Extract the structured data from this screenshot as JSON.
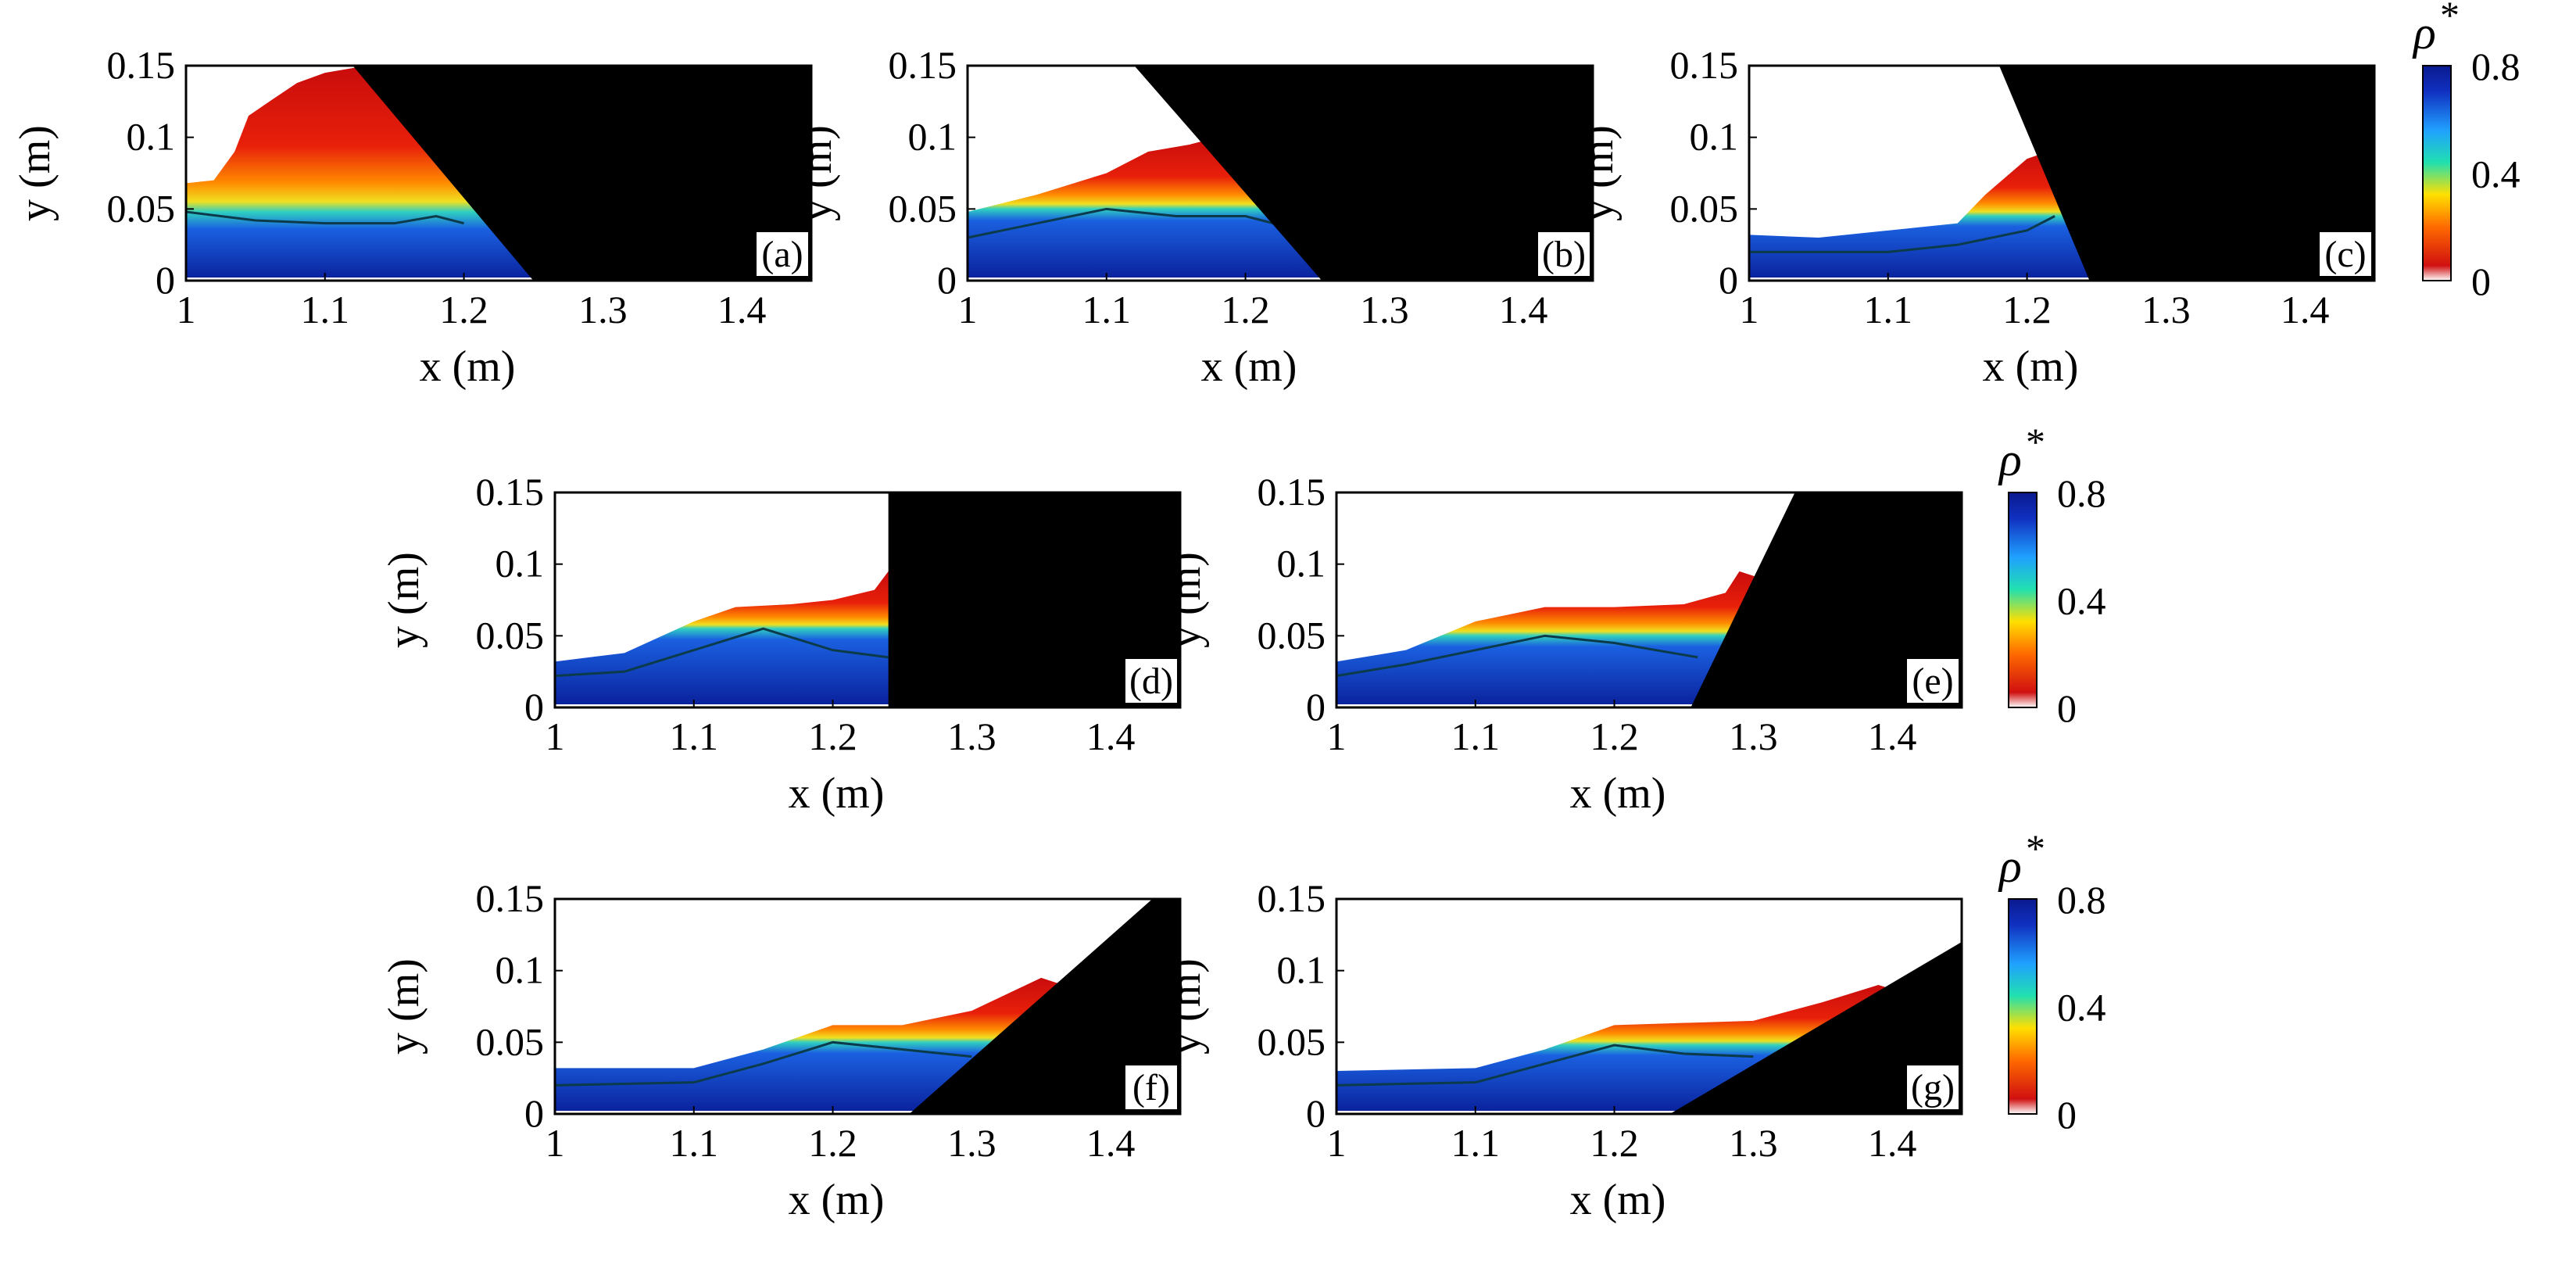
{
  "chart_data": {
    "type": "heatmap",
    "description_axes": {
      "xlabel": "x (m)",
      "ylabel": "y (m)",
      "xlim": [
        1,
        1.45
      ],
      "ylim": [
        0,
        0.15
      ],
      "xticks": [
        1,
        1.1,
        1.2,
        1.3,
        1.4
      ],
      "xtick_labels": [
        "1",
        "1.1",
        "1.2",
        "1.3",
        "1.4"
      ],
      "yticks": [
        0,
        0.05,
        0.1,
        0.15
      ],
      "ytick_labels": [
        "0",
        "0.05",
        "0.1",
        "0.15"
      ]
    },
    "colorbar": {
      "label": "ρ",
      "label_superscript": "*",
      "range": [
        0,
        0.8
      ],
      "ticks": [
        0,
        0.4,
        0.8
      ],
      "tick_labels": [
        "0",
        "0.4",
        "0.8"
      ],
      "colormap": "jet-reversed",
      "colors_low_to_high": [
        "#ffffff",
        "#d01010",
        "#ff6a00",
        "#ffe000",
        "#20e0b0",
        "#20a0ff",
        "#1030c0",
        "#0a1a90"
      ]
    },
    "panels": [
      {
        "label": "(a)",
        "surface": [
          [
            1.0,
            0.068
          ],
          [
            1.02,
            0.07
          ],
          [
            1.035,
            0.09
          ],
          [
            1.045,
            0.115
          ],
          [
            1.06,
            0.125
          ],
          [
            1.08,
            0.138
          ],
          [
            1.1,
            0.145
          ],
          [
            1.13,
            0.15
          ]
        ],
        "contour": [
          [
            1.0,
            0.048
          ],
          [
            1.05,
            0.042
          ],
          [
            1.1,
            0.04
          ],
          [
            1.15,
            0.04
          ],
          [
            1.18,
            0.045
          ],
          [
            1.2,
            0.04
          ]
        ],
        "dense_bottom": [
          [
            1.0,
            0.045
          ],
          [
            1.1,
            0.035
          ],
          [
            1.2,
            0.035
          ],
          [
            1.23,
            0.0
          ]
        ],
        "gate": [
          [
            1.12,
            0.15
          ],
          [
            1.45,
            0.15
          ],
          [
            1.45,
            0.0
          ],
          [
            1.25,
            0.0
          ]
        ]
      },
      {
        "label": "(b)",
        "surface": [
          [
            1.0,
            0.048
          ],
          [
            1.05,
            0.06
          ],
          [
            1.1,
            0.075
          ],
          [
            1.13,
            0.09
          ],
          [
            1.16,
            0.095
          ],
          [
            1.18,
            0.1
          ]
        ],
        "contour": [
          [
            1.0,
            0.03
          ],
          [
            1.05,
            0.04
          ],
          [
            1.1,
            0.05
          ],
          [
            1.15,
            0.045
          ],
          [
            1.2,
            0.045
          ],
          [
            1.22,
            0.04
          ]
        ],
        "dense_bottom": [
          [
            1.0,
            0.025
          ],
          [
            1.2,
            0.03
          ],
          [
            1.24,
            0.0
          ]
        ],
        "gate": [
          [
            1.12,
            0.15
          ],
          [
            1.45,
            0.15
          ],
          [
            1.45,
            0.0
          ],
          [
            1.255,
            0.0
          ]
        ]
      },
      {
        "label": "(c)",
        "surface": [
          [
            1.0,
            0.032
          ],
          [
            1.05,
            0.03
          ],
          [
            1.1,
            0.035
          ],
          [
            1.15,
            0.04
          ],
          [
            1.17,
            0.06
          ],
          [
            1.2,
            0.085
          ],
          [
            1.215,
            0.09
          ]
        ],
        "contour": [
          [
            1.0,
            0.02
          ],
          [
            1.1,
            0.02
          ],
          [
            1.15,
            0.025
          ],
          [
            1.2,
            0.035
          ],
          [
            1.22,
            0.045
          ]
        ],
        "dense_bottom": [
          [
            1.0,
            0.015
          ],
          [
            1.2,
            0.025
          ],
          [
            1.24,
            0.0
          ]
        ],
        "gate": [
          [
            1.18,
            0.15
          ],
          [
            1.45,
            0.15
          ],
          [
            1.45,
            0.0
          ],
          [
            1.245,
            0.0
          ]
        ]
      },
      {
        "label": "(d)",
        "surface": [
          [
            1.0,
            0.032
          ],
          [
            1.05,
            0.038
          ],
          [
            1.1,
            0.06
          ],
          [
            1.13,
            0.07
          ],
          [
            1.17,
            0.072
          ],
          [
            1.2,
            0.075
          ],
          [
            1.23,
            0.082
          ],
          [
            1.24,
            0.095
          ]
        ],
        "contour": [
          [
            1.0,
            0.022
          ],
          [
            1.05,
            0.025
          ],
          [
            1.1,
            0.04
          ],
          [
            1.15,
            0.055
          ],
          [
            1.2,
            0.04
          ],
          [
            1.24,
            0.035
          ]
        ],
        "dense_bottom": [
          [
            1.0,
            0.018
          ],
          [
            1.15,
            0.05
          ],
          [
            1.24,
            0.03
          ]
        ],
        "gate": [
          [
            1.24,
            0.15
          ],
          [
            1.45,
            0.15
          ],
          [
            1.45,
            0.0
          ],
          [
            1.24,
            0.0
          ]
        ]
      },
      {
        "label": "(e)",
        "surface": [
          [
            1.0,
            0.032
          ],
          [
            1.05,
            0.04
          ],
          [
            1.1,
            0.06
          ],
          [
            1.15,
            0.07
          ],
          [
            1.2,
            0.07
          ],
          [
            1.25,
            0.072
          ],
          [
            1.28,
            0.08
          ],
          [
            1.29,
            0.095
          ]
        ],
        "contour": [
          [
            1.0,
            0.022
          ],
          [
            1.05,
            0.03
          ],
          [
            1.1,
            0.04
          ],
          [
            1.15,
            0.05
          ],
          [
            1.2,
            0.045
          ],
          [
            1.26,
            0.035
          ]
        ],
        "dense_bottom": [
          [
            1.0,
            0.018
          ],
          [
            1.15,
            0.045
          ],
          [
            1.26,
            0.02
          ]
        ],
        "gate": [
          [
            1.33,
            0.15
          ],
          [
            1.45,
            0.15
          ],
          [
            1.45,
            0.0
          ],
          [
            1.255,
            0.0
          ]
        ]
      },
      {
        "label": "(f)",
        "surface": [
          [
            1.0,
            0.032
          ],
          [
            1.1,
            0.032
          ],
          [
            1.15,
            0.045
          ],
          [
            1.2,
            0.062
          ],
          [
            1.25,
            0.062
          ],
          [
            1.3,
            0.072
          ],
          [
            1.35,
            0.095
          ]
        ],
        "contour": [
          [
            1.0,
            0.02
          ],
          [
            1.1,
            0.022
          ],
          [
            1.15,
            0.035
          ],
          [
            1.2,
            0.05
          ],
          [
            1.25,
            0.045
          ],
          [
            1.3,
            0.04
          ]
        ],
        "dense_bottom": [
          [
            1.0,
            0.015
          ],
          [
            1.2,
            0.045
          ],
          [
            1.27,
            0.01
          ]
        ],
        "gate": [
          [
            1.43,
            0.15
          ],
          [
            1.45,
            0.15
          ],
          [
            1.45,
            0.0
          ],
          [
            1.255,
            0.0
          ]
        ]
      },
      {
        "label": "(g)",
        "surface": [
          [
            1.0,
            0.03
          ],
          [
            1.1,
            0.032
          ],
          [
            1.15,
            0.045
          ],
          [
            1.2,
            0.062
          ],
          [
            1.3,
            0.065
          ],
          [
            1.35,
            0.078
          ],
          [
            1.39,
            0.09
          ]
        ],
        "contour": [
          [
            1.0,
            0.02
          ],
          [
            1.1,
            0.022
          ],
          [
            1.15,
            0.035
          ],
          [
            1.2,
            0.048
          ],
          [
            1.25,
            0.042
          ],
          [
            1.3,
            0.04
          ]
        ],
        "dense_bottom": [
          [
            1.0,
            0.015
          ],
          [
            1.2,
            0.04
          ],
          [
            1.28,
            0.01
          ]
        ],
        "gate": [
          [
            1.45,
            0.12
          ],
          [
            1.45,
            0.0
          ],
          [
            1.24,
            0.0
          ]
        ]
      }
    ]
  }
}
